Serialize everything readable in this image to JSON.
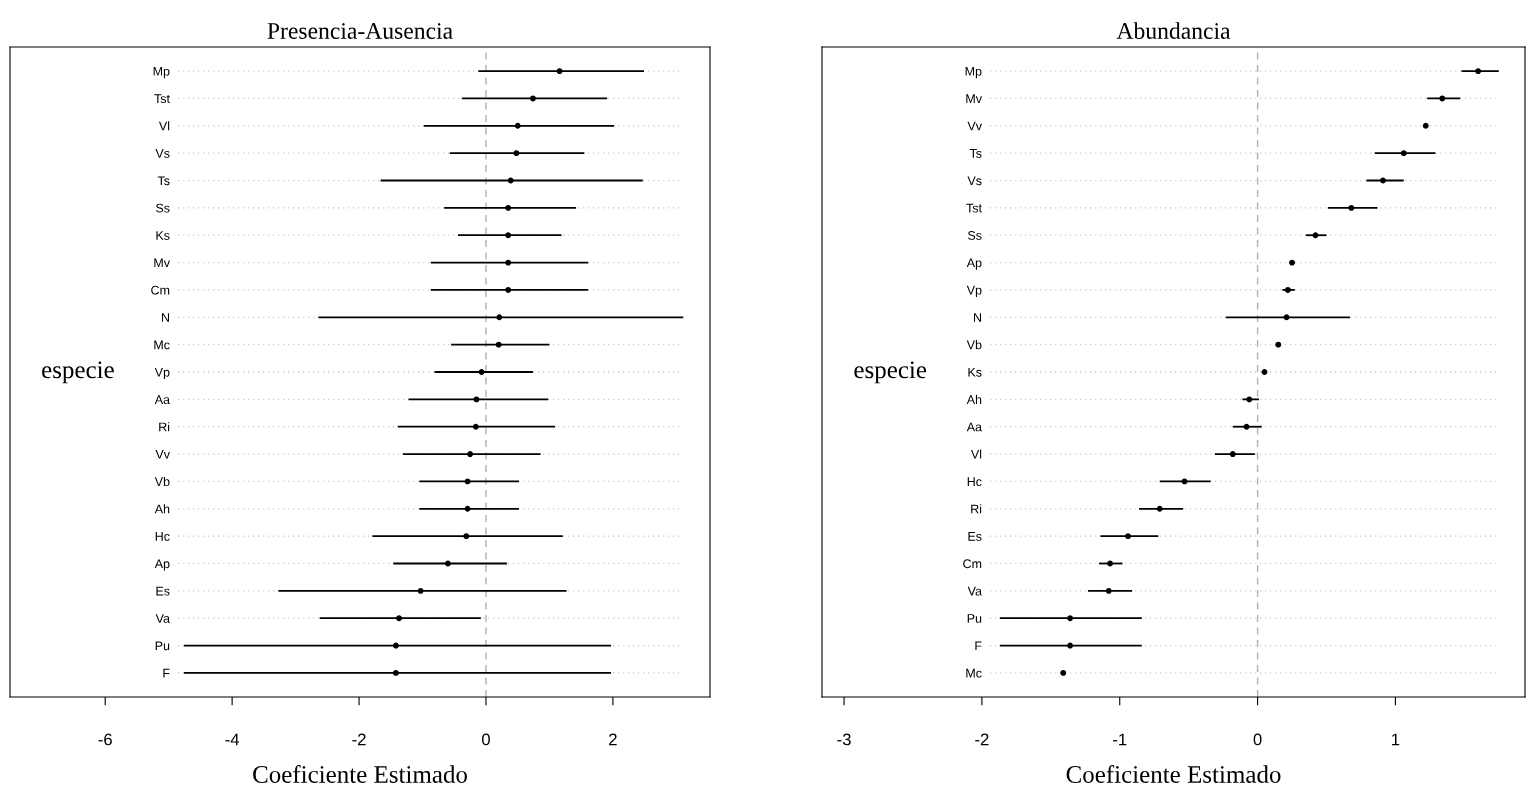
{
  "chart_data": [
    {
      "type": "scatter",
      "orientation": "horizontal",
      "title": "Presencia-Ausencia",
      "xlabel": "Coeficiente Estimado",
      "ylabel": "especie",
      "categories": [
        "Mp",
        "Tst",
        "Vl",
        "Vs",
        "Ts",
        "Ss",
        "Ks",
        "Mv",
        "Cm",
        "N",
        "Mc",
        "Vp",
        "Aa",
        "Ri",
        "Vv",
        "Vb",
        "Ah",
        "Hc",
        "Ap",
        "Es",
        "Va",
        "Pu",
        "F"
      ],
      "values": [
        1.16,
        0.74,
        0.5,
        0.48,
        0.39,
        0.35,
        0.35,
        0.35,
        0.35,
        0.21,
        0.2,
        -0.07,
        -0.15,
        -0.16,
        -0.25,
        -0.29,
        -0.29,
        -0.31,
        -0.6,
        -1.03,
        -1.37,
        -1.42,
        -1.42
      ],
      "errors": [
        [
          -0.12,
          2.49
        ],
        [
          -0.38,
          1.91
        ],
        [
          -0.98,
          2.02
        ],
        [
          -0.57,
          1.55
        ],
        [
          -1.66,
          2.47
        ],
        [
          -0.66,
          1.42
        ],
        [
          -0.44,
          1.19
        ],
        [
          -0.87,
          1.61
        ],
        [
          -0.87,
          1.61
        ],
        [
          -2.64,
          3.11
        ],
        [
          -0.55,
          1.0
        ],
        [
          -0.81,
          0.74
        ],
        [
          -1.22,
          0.98
        ],
        [
          -1.39,
          1.09
        ],
        [
          -1.31,
          0.86
        ],
        [
          -1.05,
          0.52
        ],
        [
          -1.05,
          0.52
        ],
        [
          -1.79,
          1.21
        ],
        [
          -1.46,
          0.33
        ],
        [
          -3.27,
          1.27
        ],
        [
          -2.62,
          -0.08
        ],
        [
          -4.76,
          1.97
        ],
        [
          -4.76,
          1.97
        ]
      ],
      "color": "#000000",
      "marker": "circle",
      "grid": "y",
      "xlim": [
        -7.5,
        3.53
      ],
      "xticks": [
        {
          "value": -6,
          "label": "-6"
        },
        {
          "value": -4,
          "label": "-4"
        },
        {
          "value": -2,
          "label": "-2"
        },
        0,
        2
      ],
      "ref_lines": [
        {
          "axis": "x",
          "value": 0,
          "color": "#b0b0b0",
          "line_style": "dashed"
        }
      ]
    },
    {
      "type": "scatter",
      "orientation": "horizontal",
      "title": "Abundancia",
      "xlabel": "Coeficiente Estimado",
      "ylabel": "especie",
      "categories": [
        "Mp",
        "Mv",
        "Vv",
        "Ts",
        "Vs",
        "Tst",
        "Ss",
        "Ap",
        "Vp",
        "N",
        "Vb",
        "Ks",
        "Ah",
        "Aa",
        "Vl",
        "Hc",
        "Ri",
        "Es",
        "Cm",
        "Va",
        "Pu",
        "F",
        "Mc"
      ],
      "values": [
        1.6,
        1.34,
        1.22,
        1.06,
        0.91,
        0.68,
        0.42,
        0.25,
        0.22,
        0.21,
        0.15,
        0.05,
        -0.06,
        -0.08,
        -0.18,
        -0.53,
        -0.71,
        -0.94,
        -1.07,
        -1.08,
        -1.36,
        -1.36,
        -1.41
      ],
      "errors": [
        [
          1.48,
          1.75
        ],
        [
          1.23,
          1.47
        ],
        null,
        [
          0.85,
          1.29
        ],
        [
          0.79,
          1.06
        ],
        [
          0.51,
          0.87
        ],
        [
          0.35,
          0.5
        ],
        null,
        [
          0.18,
          0.27
        ],
        [
          -0.23,
          0.67
        ],
        null,
        null,
        [
          -0.11,
          0.01
        ],
        [
          -0.18,
          0.03
        ],
        [
          -0.31,
          -0.02
        ],
        [
          -0.71,
          -0.34
        ],
        [
          -0.86,
          -0.54
        ],
        [
          -1.14,
          -0.72
        ],
        [
          -1.15,
          -0.98
        ],
        [
          -1.23,
          -0.91
        ],
        [
          -1.87,
          -0.84
        ],
        [
          -1.87,
          -0.84
        ],
        null
      ],
      "color": "#000000",
      "marker": "circle",
      "grid": "y",
      "xlim": [
        -3.16,
        1.94
      ],
      "xticks": [
        {
          "value": -3,
          "label": "-3"
        },
        {
          "value": -2,
          "label": "-2"
        },
        {
          "value": -1,
          "label": "-1"
        },
        0,
        1
      ],
      "ref_lines": [
        {
          "axis": "x",
          "value": 0,
          "color": "#b0b0b0",
          "line_style": "dashed"
        }
      ]
    }
  ]
}
